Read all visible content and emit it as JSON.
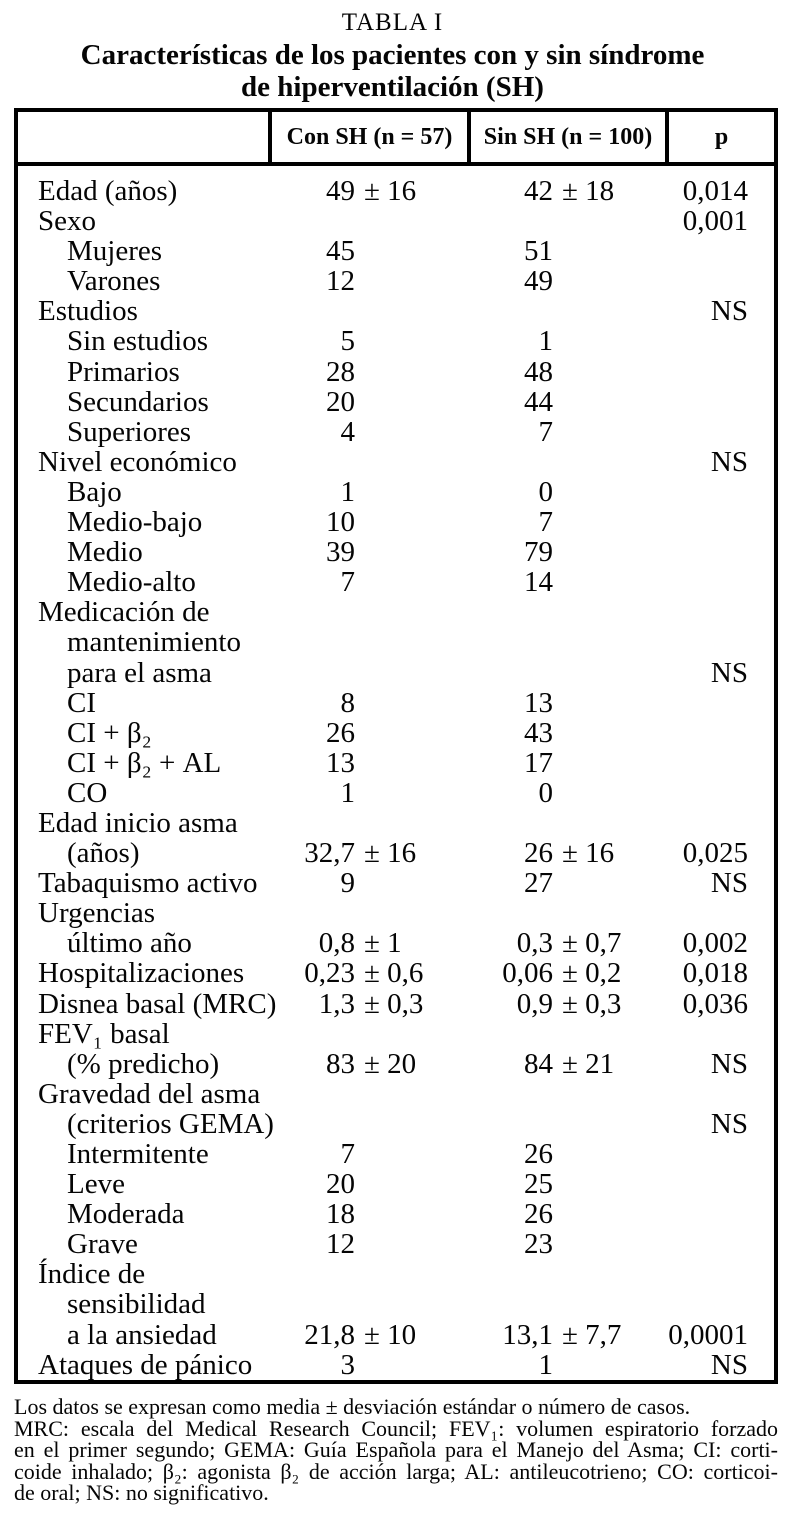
{
  "title": {
    "label": "TABLA I",
    "line1": "Características de los pacientes con y sin síndrome",
    "line2": "de hiperventilación (SH)"
  },
  "table": {
    "columns": [
      "",
      "Con SH (n = 57)",
      "Sin SH (n = 100)",
      "p"
    ],
    "rows": [
      {
        "label": "Edad (años)",
        "indent": 0,
        "con": "49 ± 16",
        "sin": "42 ± 18",
        "p": "0,014"
      },
      {
        "label": "Sexo",
        "indent": 0,
        "p": "0,001"
      },
      {
        "label": "Mujeres",
        "indent": 1,
        "con": "45",
        "sin": "51"
      },
      {
        "label": "Varones",
        "indent": 1,
        "con": "12",
        "sin": "49"
      },
      {
        "label": "Estudios",
        "indent": 0,
        "p": "NS"
      },
      {
        "label": "Sin estudios",
        "indent": 1,
        "con": "5",
        "sin": "1"
      },
      {
        "label": "Primarios",
        "indent": 1,
        "con": "28",
        "sin": "48"
      },
      {
        "label": "Secundarios",
        "indent": 1,
        "con": "20",
        "sin": "44"
      },
      {
        "label": "Superiores",
        "indent": 1,
        "con": "4",
        "sin": "7"
      },
      {
        "label": "Nivel económico",
        "indent": 0,
        "p": "NS"
      },
      {
        "label": "Bajo",
        "indent": 1,
        "con": "1",
        "sin": "0"
      },
      {
        "label": "Medio-bajo",
        "indent": 1,
        "con": "10",
        "sin": "7"
      },
      {
        "label": "Medio",
        "indent": 1,
        "con": "39",
        "sin": "79"
      },
      {
        "label": "Medio-alto",
        "indent": 1,
        "con": "7",
        "sin": "14"
      },
      {
        "label": "Medicación de",
        "indent": 0
      },
      {
        "label": "mantenimiento",
        "indent": 1
      },
      {
        "label": "para el asma",
        "indent": 1,
        "p": "NS"
      },
      {
        "label": "CI",
        "indent": 1,
        "con": "8",
        "sin": "13"
      },
      {
        "label": "CI + β₂",
        "indent": 1,
        "con": "26",
        "sin": "43"
      },
      {
        "label": "CI + β₂ + AL",
        "indent": 1,
        "con": "13",
        "sin": "17"
      },
      {
        "label": "CO",
        "indent": 1,
        "con": "1",
        "sin": "0"
      },
      {
        "label": "Edad inicio asma",
        "indent": 0
      },
      {
        "label": "(años)",
        "indent": 1,
        "con": "32,7 ± 16",
        "sin": "26 ± 16",
        "p": "0,025"
      },
      {
        "label": "Tabaquismo activo",
        "indent": 0,
        "con": "9",
        "sin": "27",
        "p": "NS"
      },
      {
        "label": "Urgencias",
        "indent": 0
      },
      {
        "label": "último año",
        "indent": 1,
        "con": "0,8 ± 1",
        "sin": "0,3 ± 0,7",
        "p": "0,002"
      },
      {
        "label": "Hospitalizaciones",
        "indent": 0,
        "con": "0,23 ± 0,6",
        "sin": "0,06 ± 0,2",
        "p": "0,018"
      },
      {
        "label": "Disnea basal (MRC)",
        "indent": 0,
        "con": "1,3 ± 0,3",
        "sin": "0,9 ± 0,3",
        "p": "0,036"
      },
      {
        "label": "FEV₁ basal",
        "indent": 0
      },
      {
        "label": "(% predicho)",
        "indent": 1,
        "con": "83 ± 20",
        "sin": "84 ± 21",
        "p": "NS"
      },
      {
        "label": "Gravedad del asma",
        "indent": 0
      },
      {
        "label": "(criterios GEMA)",
        "indent": 1,
        "p": "NS"
      },
      {
        "label": "Intermitente",
        "indent": 1,
        "con": "7",
        "sin": "26"
      },
      {
        "label": "Leve",
        "indent": 1,
        "con": "20",
        "sin": "25"
      },
      {
        "label": "Moderada",
        "indent": 1,
        "con": "18",
        "sin": "26"
      },
      {
        "label": "Grave",
        "indent": 1,
        "con": "12",
        "sin": "23"
      },
      {
        "label": "Índice de",
        "indent": 0
      },
      {
        "label": "sensibilidad",
        "indent": 1
      },
      {
        "label": "a la ansiedad",
        "indent": 1,
        "con": "21,8 ± 10",
        "sin": "13,1 ± 7,7",
        "p": "0,0001"
      },
      {
        "label": "Ataques de pánico",
        "indent": 0,
        "con": "3",
        "sin": "1",
        "p": "NS"
      }
    ]
  },
  "footnote": {
    "line1": "Los datos se expresan como media ± desviación estándar o número de casos.",
    "justified_lines": [
      "MRC: escala del Medical Research Council; FEV₁: volumen espiratorio forzado",
      "en el primer segundo; GEMA: Guía Española para el Manejo del Asma; CI: corti-",
      "coide inhalado; β₂: agonista β₂ de acción larga; AL: antileucotrieno; CO: corticoi-",
      "de oral; NS: no significativo."
    ]
  }
}
